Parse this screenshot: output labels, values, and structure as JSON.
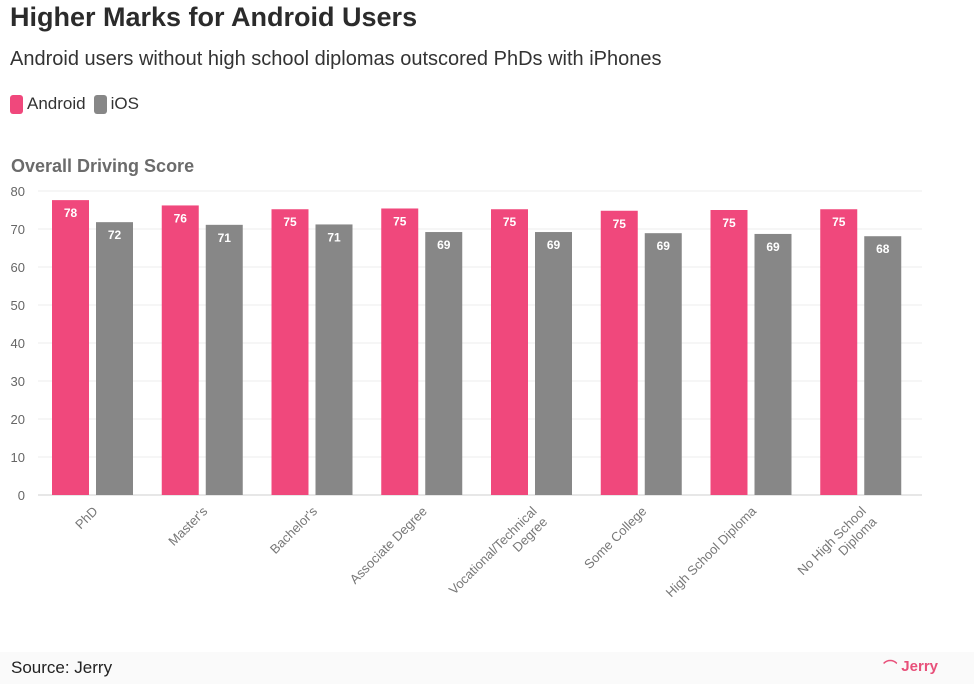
{
  "header": {
    "title": "Higher Marks for Android Users",
    "subtitle": "Android users without high school diplomas outscored PhDs with iPhones"
  },
  "legend": [
    {
      "label": "Android",
      "color": "#f0487c"
    },
    {
      "label": "iOS",
      "color": "#878787"
    }
  ],
  "footer": {
    "source": "Source: Jerry",
    "brand": "Jerry",
    "brand_icon": "jerry-logo-icon"
  },
  "chart_data": {
    "type": "bar",
    "title": "Overall Driving Score",
    "xlabel": "",
    "ylabel": "",
    "ylim": [
      0,
      80
    ],
    "yticks": [
      0,
      10,
      20,
      30,
      40,
      50,
      60,
      70,
      80
    ],
    "grid": true,
    "legend_position": "top-left",
    "categories": [
      "PhD",
      "Master's",
      "Bachelor's",
      "Associate Degree",
      "Vocational/Technical Degree",
      "Some College",
      "High School Diploma",
      "No High School Diploma"
    ],
    "category_lines": [
      [
        "PhD"
      ],
      [
        "Master's"
      ],
      [
        "Bachelor's"
      ],
      [
        "Associate Degree"
      ],
      [
        "Vocational/Technical",
        "Degree"
      ],
      [
        "Some College"
      ],
      [
        "High School Diploma"
      ],
      [
        "No High School",
        "Diploma"
      ]
    ],
    "series": [
      {
        "name": "Android",
        "color": "#f0487c",
        "values": [
          77.6,
          76.2,
          75.2,
          75.4,
          75.2,
          74.8,
          75.0,
          75.2
        ],
        "labels": [
          "78",
          "76",
          "75",
          "75",
          "75",
          "75",
          "75",
          "75"
        ]
      },
      {
        "name": "iOS",
        "color": "#878787",
        "values": [
          71.8,
          71.1,
          71.2,
          69.2,
          69.2,
          68.9,
          68.7,
          68.1
        ],
        "labels": [
          "72",
          "71",
          "71",
          "69",
          "69",
          "69",
          "69",
          "68"
        ]
      }
    ]
  }
}
